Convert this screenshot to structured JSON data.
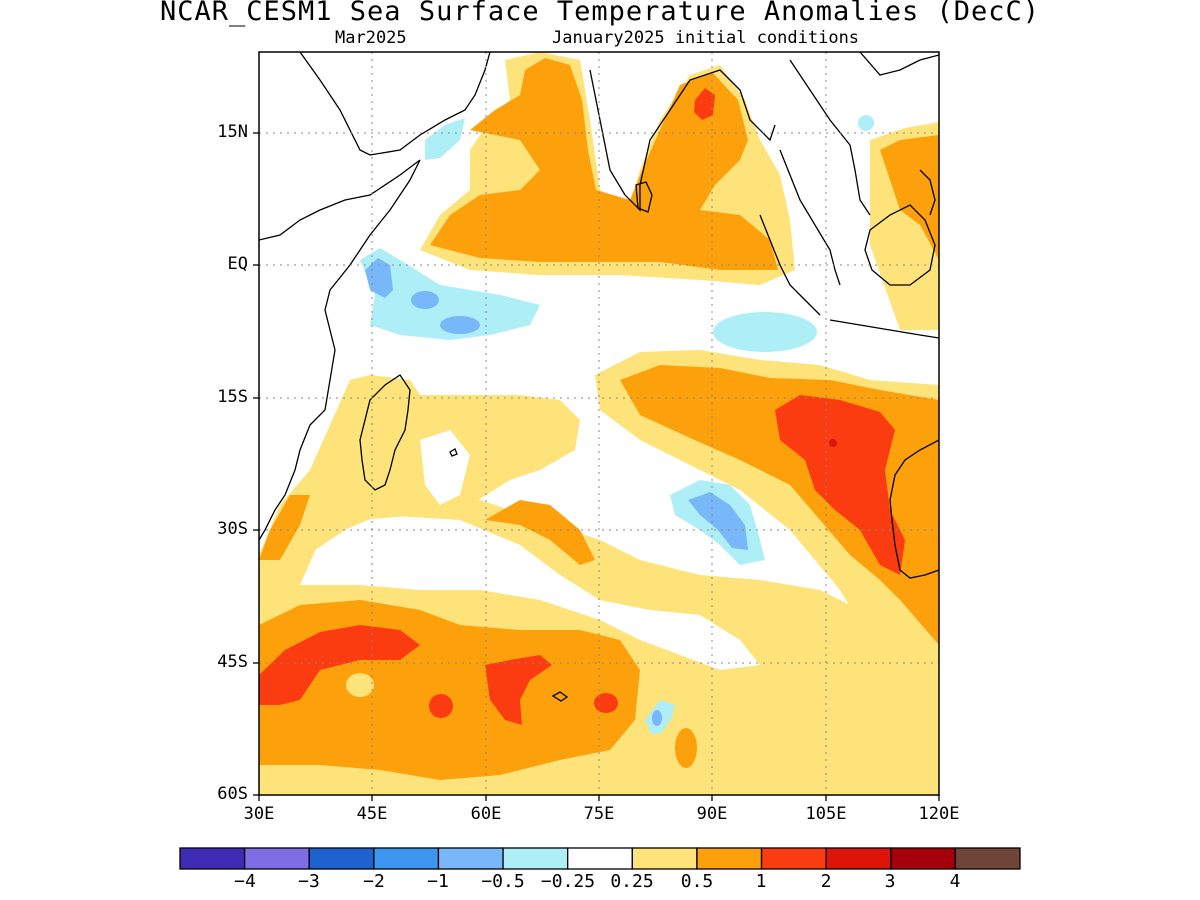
{
  "map": {
    "title": "NCAR_CESM1 Sea Surface Temperature Anomalies (DecC)",
    "subtitle_left": "Mar2025",
    "subtitle_right": "January2025 initial conditions",
    "lat_labels": [
      "15N",
      "EQ",
      "15S",
      "30S",
      "45S",
      "60S"
    ],
    "lon_labels": [
      "30E",
      "45E",
      "60E",
      "75E",
      "90E",
      "105E",
      "120E"
    ],
    "extent": {
      "lon": [
        30,
        120
      ],
      "lat": [
        -60,
        22.5
      ]
    }
  },
  "colorbar": {
    "labels": [
      "-4",
      "-3",
      "-2",
      "-1",
      "-0.5",
      "-0.25",
      "0.25",
      "0.5",
      "1",
      "2",
      "3",
      "4"
    ],
    "colors": [
      "#3e2bb6",
      "#7e6ee6",
      "#1e62d0",
      "#3c96f0",
      "#78b8f8",
      "#aeeef6",
      "#ffffff",
      "#fde37a",
      "#fca10b",
      "#fb3c10",
      "#dc1508",
      "#a5000a",
      "#6e4538"
    ]
  }
}
